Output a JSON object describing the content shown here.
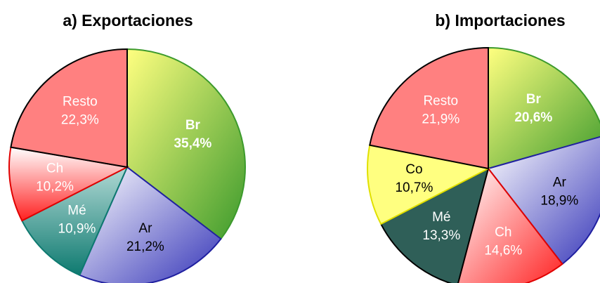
{
  "chart_data": [
    {
      "type": "pie",
      "title": "a) Exportaciones",
      "categories": [
        "Br",
        "Ar",
        "Mé",
        "Ch",
        "Resto"
      ],
      "values": [
        35.4,
        21.2,
        10.9,
        10.2,
        22.3
      ],
      "value_labels": [
        "35,4%",
        "21,2%",
        "10,9%",
        "10,2%",
        "22,3%"
      ],
      "colors": [
        "#3c9a2c",
        "#3434b8",
        "#0e7a70",
        "#ff2020",
        "#ff8080"
      ]
    },
    {
      "type": "pie",
      "title": "b) Importaciones",
      "categories": [
        "Br",
        "Ar",
        "Ch",
        "Mé",
        "Co",
        "Resto"
      ],
      "values": [
        20.6,
        18.9,
        14.6,
        13.3,
        10.7,
        21.9
      ],
      "value_labels": [
        "20,6%",
        "18,9%",
        "14,6%",
        "13,3%",
        "10,7%",
        "21,9%"
      ],
      "colors": [
        "#3c9a2c",
        "#3434b8",
        "#ff2020",
        "#2f5f58",
        "#ffff80",
        "#ff8080"
      ]
    }
  ]
}
